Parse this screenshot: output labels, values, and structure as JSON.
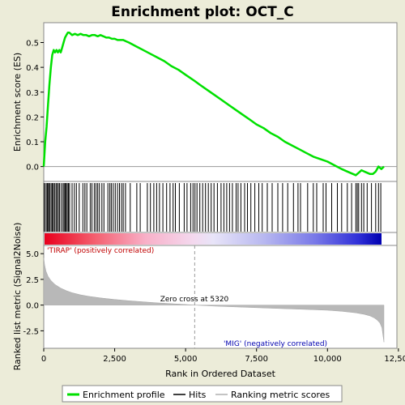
{
  "chart_data": {
    "type": "line",
    "title": "Enrichment plot: OCT_C",
    "xlabel": "Rank in Ordered Dataset",
    "top_panel": {
      "ylabel": "Enrichment score (ES)",
      "ylim": [
        -0.06,
        0.58
      ],
      "yticks": [
        "0.0",
        "0.1",
        "0.2",
        "0.3",
        "0.4",
        "0.5"
      ],
      "ytick_values": [
        0.0,
        0.1,
        0.2,
        0.3,
        0.4,
        0.5
      ],
      "series": [
        {
          "name": "Enrichment profile",
          "x": [
            0,
            50,
            100,
            150,
            200,
            250,
            300,
            350,
            400,
            450,
            500,
            550,
            600,
            650,
            700,
            750,
            800,
            850,
            900,
            950,
            1000,
            1100,
            1200,
            1300,
            1400,
            1500,
            1600,
            1700,
            1800,
            1900,
            2000,
            2100,
            2200,
            2300,
            2400,
            2500,
            2600,
            2700,
            2800,
            2900,
            3000,
            3250,
            3500,
            3750,
            4000,
            4250,
            4500,
            4750,
            5000,
            5320,
            5500,
            5750,
            6000,
            6250,
            6500,
            6750,
            7000,
            7250,
            7500,
            7750,
            8000,
            8250,
            8500,
            8750,
            9000,
            9250,
            9500,
            9750,
            10000,
            10250,
            10500,
            10700,
            10900,
            11000,
            11100,
            11200,
            11300,
            11400,
            11500,
            11600,
            11700,
            11800,
            11900,
            11990
          ],
          "y": [
            0.0,
            0.1,
            0.16,
            0.25,
            0.33,
            0.4,
            0.45,
            0.47,
            0.46,
            0.47,
            0.46,
            0.47,
            0.46,
            0.48,
            0.5,
            0.52,
            0.53,
            0.54,
            0.54,
            0.535,
            0.53,
            0.535,
            0.53,
            0.535,
            0.53,
            0.53,
            0.525,
            0.53,
            0.53,
            0.525,
            0.53,
            0.525,
            0.52,
            0.52,
            0.515,
            0.515,
            0.51,
            0.51,
            0.51,
            0.505,
            0.5,
            0.485,
            0.47,
            0.455,
            0.44,
            0.425,
            0.405,
            0.39,
            0.37,
            0.345,
            0.33,
            0.31,
            0.29,
            0.27,
            0.25,
            0.23,
            0.21,
            0.19,
            0.17,
            0.155,
            0.135,
            0.12,
            0.1,
            0.085,
            0.07,
            0.055,
            0.04,
            0.03,
            0.02,
            0.005,
            -0.01,
            -0.02,
            -0.03,
            -0.035,
            -0.025,
            -0.015,
            -0.02,
            -0.025,
            -0.03,
            -0.03,
            -0.02,
            0.0,
            -0.01,
            0.0
          ]
        }
      ]
    },
    "hits": [
      15,
      60,
      110,
      140,
      175,
      210,
      260,
      300,
      340,
      380,
      430,
      470,
      520,
      560,
      620,
      680,
      720,
      760,
      790,
      830,
      870,
      910,
      1000,
      1080,
      1150,
      1250,
      1380,
      1450,
      1520,
      1640,
      1700,
      1780,
      1840,
      1900,
      1960,
      2050,
      2120,
      2260,
      2330,
      2380,
      2450,
      2520,
      2600,
      2670,
      2740,
      2800,
      2880,
      3050,
      3280,
      3400,
      3650,
      3760,
      3880,
      3980,
      4080,
      4200,
      4330,
      4450,
      4560,
      4640,
      4780,
      4950,
      5050,
      5180,
      5260,
      5330,
      5400,
      5500,
      5600,
      5700,
      5800,
      5900,
      6000,
      6120,
      6250,
      6350,
      6450,
      6550,
      6650,
      6780,
      6850,
      6950,
      7080,
      7180,
      7300,
      7440,
      7580,
      7700,
      7880,
      8050,
      8250,
      8420,
      8600,
      8800,
      8960,
      9050,
      9300,
      9500,
      9620,
      9850,
      9950,
      10150,
      10350,
      10500,
      10700,
      10850,
      11000,
      11050,
      11100,
      11200,
      11280,
      11400,
      11550,
      11700,
      11800,
      11880
    ],
    "bottom_panel": {
      "ylabel": "Ranked list metric (Signal2Noise)",
      "ylim": [
        -4.2,
        5.8
      ],
      "yticks": [
        "5.0",
        "2.5",
        "0.0",
        "-2.5"
      ],
      "ytick_values": [
        5.0,
        2.5,
        0.0,
        -2.5
      ],
      "metric_x": [
        0,
        30,
        80,
        150,
        250,
        400,
        600,
        800,
        1000,
        1300,
        1600,
        2000,
        2500,
        3000,
        3500,
        4000,
        4500,
        5000,
        5320,
        6000,
        7000,
        8000,
        9000,
        10000,
        10500,
        11000,
        11300,
        11500,
        11650,
        11750,
        11850,
        11920,
        11960,
        11990
      ],
      "metric_y": [
        4.6,
        3.9,
        3.3,
        2.8,
        2.4,
        2.0,
        1.65,
        1.4,
        1.2,
        1.0,
        0.85,
        0.7,
        0.55,
        0.42,
        0.32,
        0.22,
        0.14,
        0.06,
        0.0,
        -0.1,
        -0.2,
        -0.3,
        -0.4,
        -0.5,
        -0.6,
        -0.75,
        -0.9,
        -1.05,
        -1.25,
        -1.45,
        -1.75,
        -2.2,
        -3.0,
        -3.6
      ],
      "zero_cross_label": "Zero cross at 5320",
      "zero_cross": 5320,
      "positive_label": "'TIRAP' (positively correlated)",
      "negative_label": "'MIG' (negatively correlated)"
    },
    "xlim": [
      0,
      12000
    ],
    "xticks": [
      "0",
      "2,500",
      "5,000",
      "7,500",
      "10,000",
      "12,500"
    ],
    "xtick_values": [
      0,
      2500,
      5000,
      7500,
      10000,
      12500
    ],
    "legend": {
      "placement": "bottom",
      "entries": [
        "Enrichment profile",
        "Hits",
        "Ranking metric scores"
      ]
    },
    "colors": {
      "profile": "#00e000",
      "hits": "#000000",
      "metric": "#b0b0b0",
      "positive_text": "#c00000",
      "negative_text": "#0000b0",
      "background": "#ececd9"
    }
  }
}
